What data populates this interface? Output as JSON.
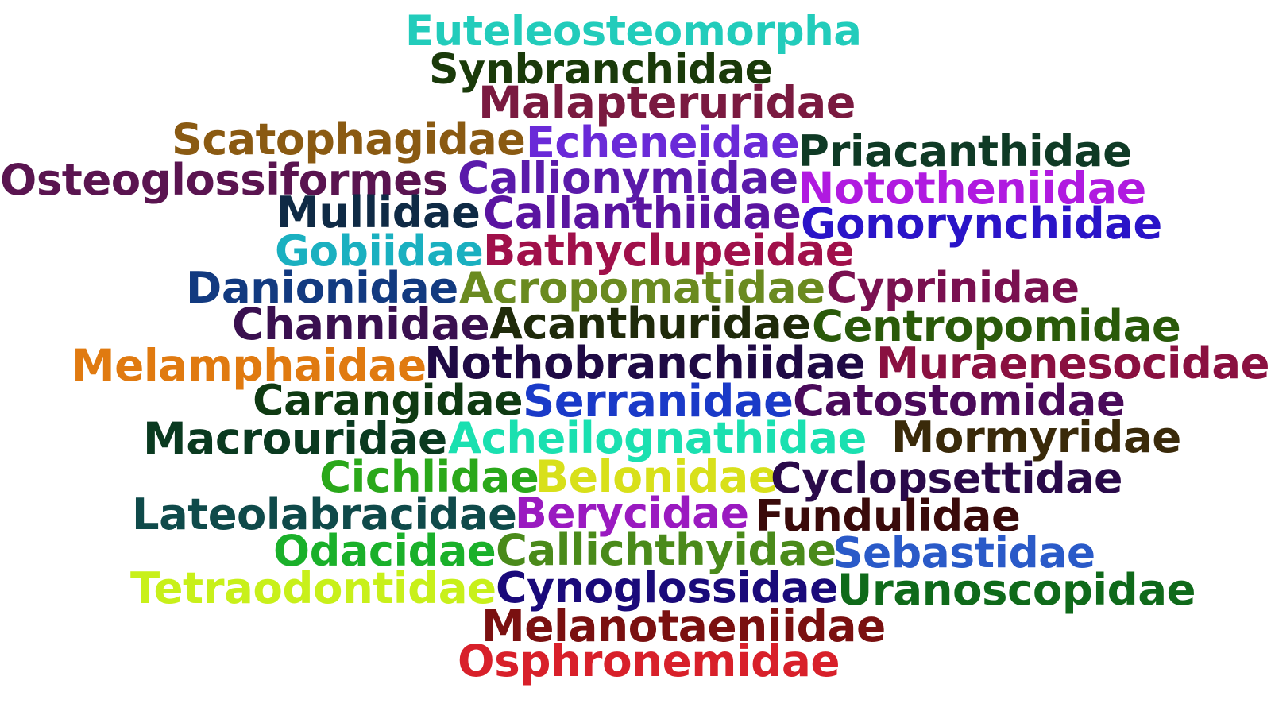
{
  "words": [
    {
      "text": "Euteleosteomorpha",
      "color": "#22ccbb"
    },
    {
      "text": "Synbranchidae",
      "color": "#1a3a0a"
    },
    {
      "text": "Malapteruridae",
      "color": "#7a1a40"
    },
    {
      "text": "Scatophagidae",
      "color": "#8a5a12"
    },
    {
      "text": "Echeneidae",
      "color": "#6a2ad8"
    },
    {
      "text": "Priacanthidae",
      "color": "#0f3a25"
    },
    {
      "text": "Osteoglossiformes",
      "color": "#5a1450"
    },
    {
      "text": "Callionymidae",
      "color": "#5a1aaa"
    },
    {
      "text": "Nototheniidae",
      "color": "#b01ae0"
    },
    {
      "text": "Mullidae",
      "color": "#0f2a45"
    },
    {
      "text": "Callanthiidae",
      "color": "#5a14a0"
    },
    {
      "text": "Gonorynchidae",
      "color": "#2a14c8"
    },
    {
      "text": "Gobiidae",
      "color": "#1ab0c0"
    },
    {
      "text": "Bathyclupeidae",
      "color": "#a0104a"
    },
    {
      "text": "Danionidae",
      "color": "#123a80"
    },
    {
      "text": "Acropomatidae",
      "color": "#6a8a20"
    },
    {
      "text": "Cyprinidae",
      "color": "#7a1050"
    },
    {
      "text": "Channidae",
      "color": "#3a1050"
    },
    {
      "text": "Acanthuridae",
      "color": "#1f2a0a"
    },
    {
      "text": "Centropomidae",
      "color": "#2a5a0a"
    },
    {
      "text": "Melamphaidae",
      "color": "#e07a10"
    },
    {
      "text": "Nothobranchiidae",
      "color": "#1f0a45"
    },
    {
      "text": "Muraenesocidae",
      "color": "#8a1040"
    },
    {
      "text": "Carangidae",
      "color": "#0f3a12"
    },
    {
      "text": "Serranidae",
      "color": "#1a3ac8"
    },
    {
      "text": "Catostomidae",
      "color": "#4a0a5a"
    },
    {
      "text": "Macrouridae",
      "color": "#0a3a20"
    },
    {
      "text": "Acheilognathidae",
      "color": "#1ae0b0"
    },
    {
      "text": "Mormyridae",
      "color": "#3a2a0a"
    },
    {
      "text": "Cichlidae",
      "color": "#2aa81a"
    },
    {
      "text": "Belonidae",
      "color": "#d8e01a"
    },
    {
      "text": "Cyclopsettidae",
      "color": "#2a0a4a"
    },
    {
      "text": "Lateolabracidae",
      "color": "#0f4a4a"
    },
    {
      "text": "Berycidae",
      "color": "#9a1ac0"
    },
    {
      "text": "Fundulidae",
      "color": "#3a0a0a"
    },
    {
      "text": "Odacidae",
      "color": "#1ab02a"
    },
    {
      "text": "Callichthyidae",
      "color": "#4a8a1a"
    },
    {
      "text": "Sebastidae",
      "color": "#2a5ac8"
    },
    {
      "text": "Tetraodontidae",
      "color": "#c8f01a"
    },
    {
      "text": "Cynoglossidae",
      "color": "#1a0a7a"
    },
    {
      "text": "Uranoscopidae",
      "color": "#0f6a1a"
    },
    {
      "text": "Melanotaeniidae",
      "color": "#7a1010"
    },
    {
      "text": "Osphronemidae",
      "color": "#d8202a"
    }
  ]
}
